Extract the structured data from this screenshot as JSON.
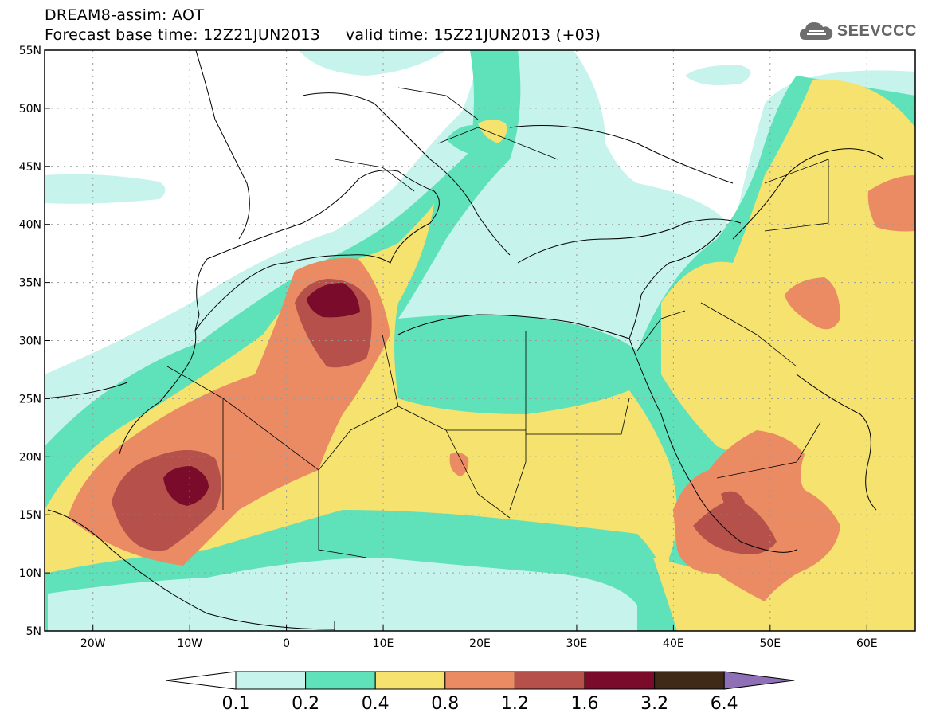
{
  "title": {
    "line1": "DREAM8-assim: AOT",
    "line2": "Forecast base time: 12Z21JUN2013     valid time: 15Z21JUN2013 (+03)"
  },
  "logo": {
    "text": "SEEVCCC",
    "icon": "cloud-icon"
  },
  "map": {
    "lon_range": [
      -25,
      65
    ],
    "lat_range": [
      5,
      55
    ],
    "x_ticks": [
      "20W",
      "10W",
      "0",
      "10E",
      "20E",
      "30E",
      "40E",
      "50E",
      "60E"
    ],
    "y_ticks": [
      "55N",
      "50N",
      "45N",
      "40N",
      "35N",
      "30N",
      "25N",
      "20N",
      "15N",
      "10N",
      "5N"
    ],
    "grid": true
  },
  "colorbar": {
    "labels": [
      "0.1",
      "0.2",
      "0.4",
      "0.8",
      "1.2",
      "1.6",
      "3.2",
      "6.4"
    ],
    "colors": [
      "#ffffff",
      "#c6f3ec",
      "#5fe1b9",
      "#f5e26f",
      "#eb8b64",
      "#b5504a",
      "#7a0b2a",
      "#3f2a17",
      "#8f6fb5"
    ]
  }
}
